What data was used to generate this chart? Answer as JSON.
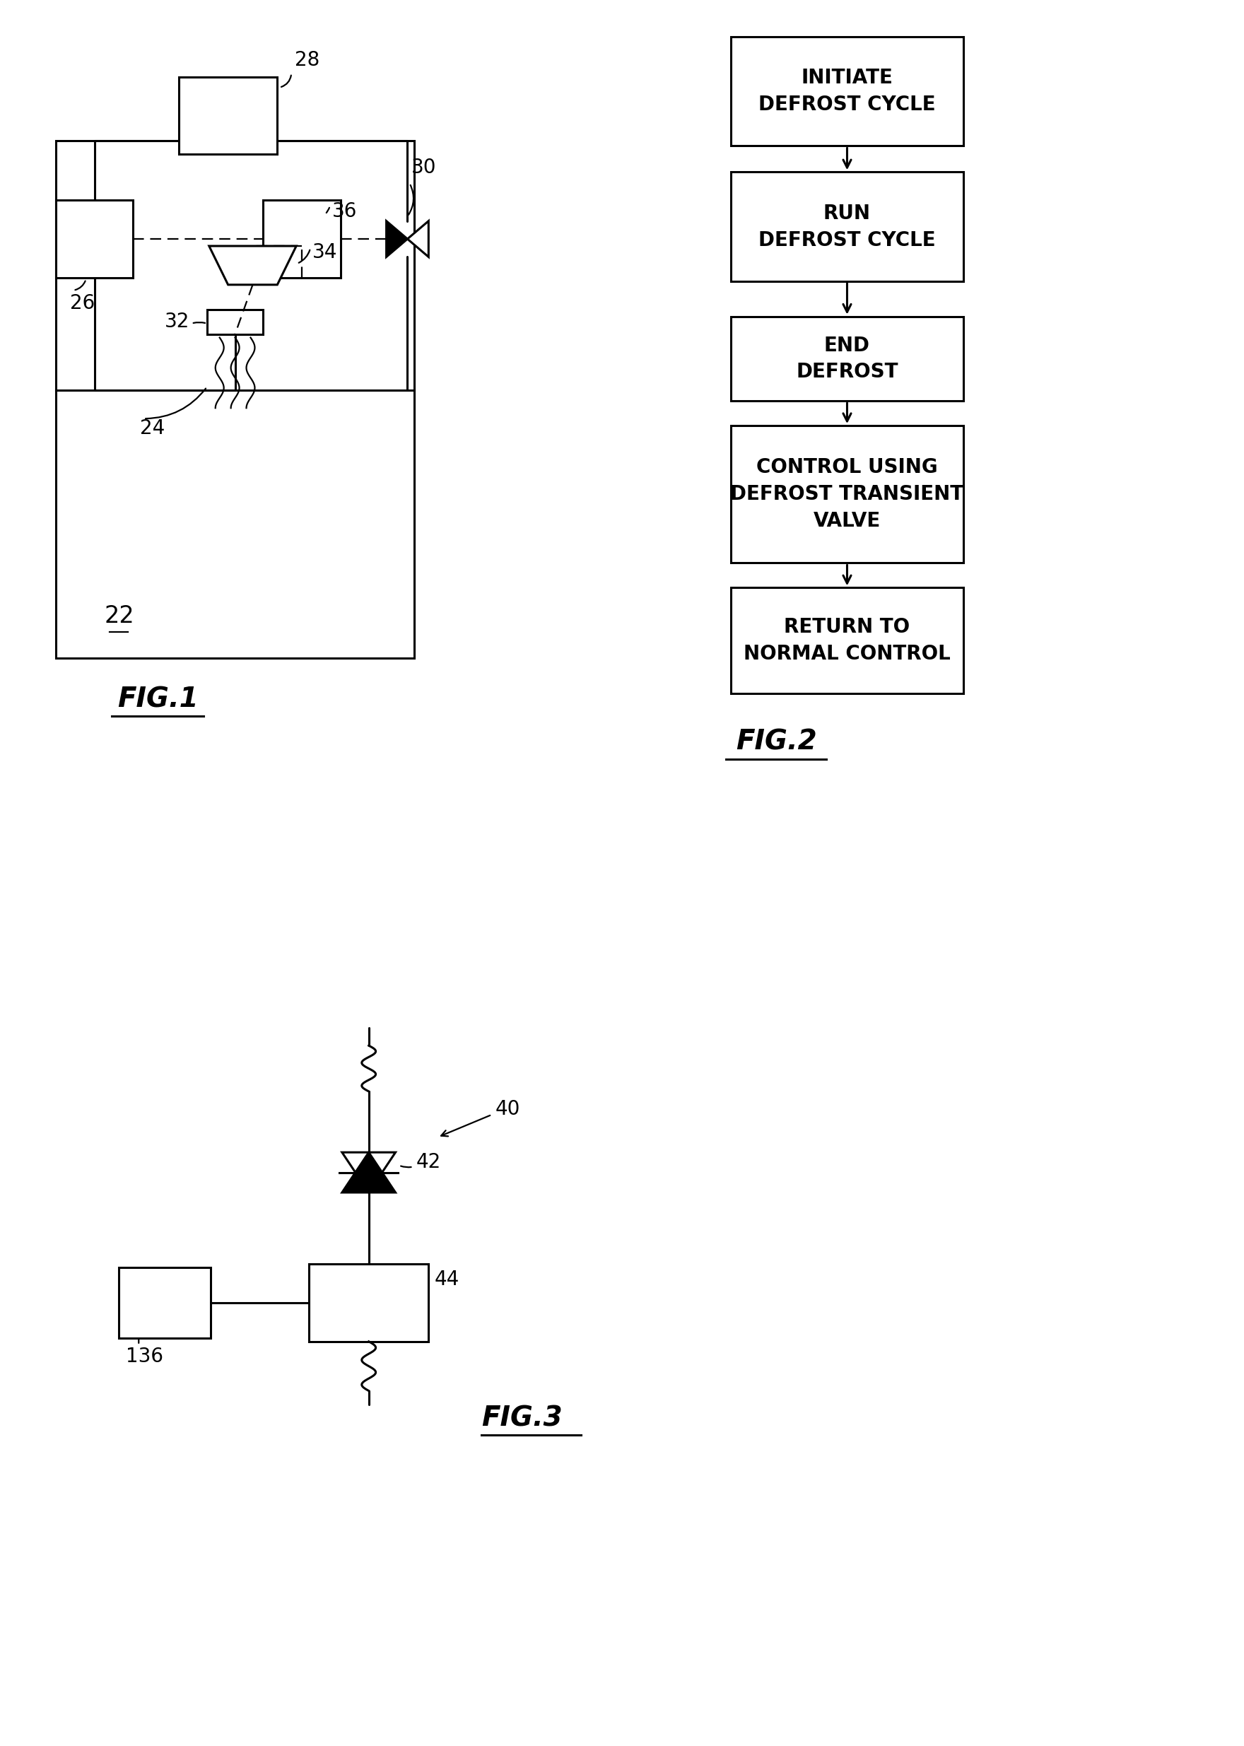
{
  "bg_color": "#ffffff",
  "fig_width": 17.6,
  "fig_height": 24.7,
  "lw": 2.2,
  "lw_thin": 1.6,
  "fig2_boxes": [
    "INITIATE\nDEFROST CYCLE",
    "RUN\nDEFROST CYCLE",
    "END\nDEFROST",
    "CONTROL USING\nDEFROST TRANSIENT\nVALVE",
    "RETURN TO\nNORMAL CONTROL"
  ],
  "fig_labels": [
    "FIG.1",
    "FIG.2",
    "FIG.3"
  ]
}
